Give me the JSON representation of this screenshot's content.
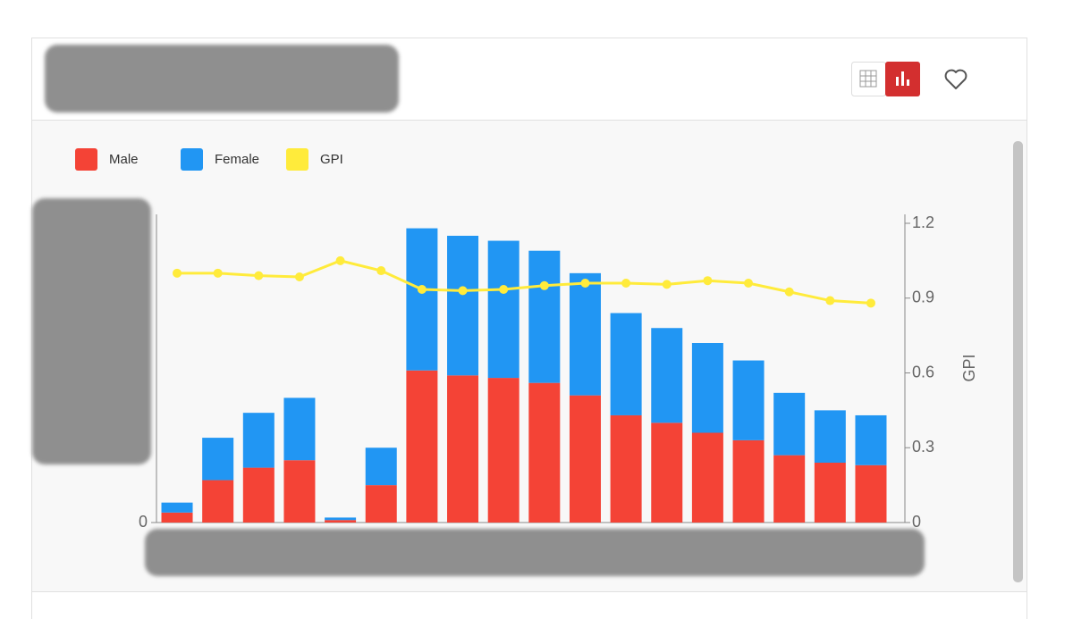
{
  "chart_data": {
    "type": "bar",
    "stacked": true,
    "legend": "top-left",
    "categories": [
      null,
      null,
      null,
      null,
      null,
      null,
      null,
      null,
      null,
      null,
      null,
      null,
      null,
      null,
      null,
      null,
      null,
      null
    ],
    "series": [
      {
        "name": "Male",
        "type": "bar",
        "color": "#f44336",
        "values": [
          0.04,
          0.17,
          0.22,
          0.25,
          0.01,
          0.15,
          0.61,
          0.59,
          0.58,
          0.56,
          0.51,
          0.43,
          0.4,
          0.36,
          0.33,
          0.27,
          0.24,
          0.23
        ]
      },
      {
        "name": "Female",
        "type": "bar",
        "color": "#2196f3",
        "values": [
          0.04,
          0.17,
          0.22,
          0.25,
          0.01,
          0.15,
          0.57,
          0.56,
          0.55,
          0.53,
          0.49,
          0.41,
          0.38,
          0.36,
          0.32,
          0.25,
          0.21,
          0.2
        ]
      },
      {
        "name": "GPI",
        "type": "line",
        "axis": "y2",
        "color": "#ffeb3b",
        "values": [
          1.0,
          1.0,
          0.99,
          0.985,
          1.05,
          1.01,
          0.935,
          0.93,
          0.935,
          0.95,
          0.96,
          0.96,
          0.955,
          0.97,
          0.96,
          0.925,
          0.89,
          0.88
        ]
      }
    ],
    "ylim": [
      0,
      1.2
    ],
    "yticks": [
      0
    ],
    "y2lim": [
      0,
      1.2
    ],
    "y2ticks": [
      0,
      0.3,
      0.6,
      0.9,
      1.2
    ],
    "y2label": "GPI"
  }
}
